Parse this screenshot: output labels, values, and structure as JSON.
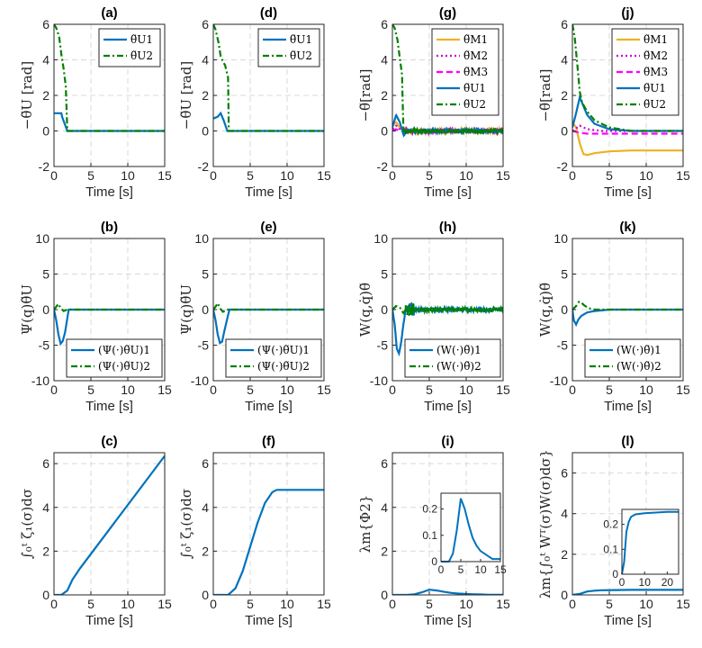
{
  "colors": {
    "c1": "#0072BD",
    "c2": "#008000",
    "m1": "#EDB120",
    "m2": "#CC00CC",
    "m3": "#FF00FF",
    "axis": "#262626",
    "grid": "#d9d9d9"
  },
  "chart_data": [
    {
      "id": "a",
      "type": "line",
      "title": "(a)",
      "xlabel": "Time [s]",
      "ylabel": "−θ̃U [rad]",
      "xlim": [
        0,
        15
      ],
      "ylim": [
        -2,
        6
      ],
      "xticks": [
        0,
        5,
        10,
        15
      ],
      "yticks": [
        -2,
        0,
        2,
        4,
        6
      ],
      "grid": true,
      "legend": "top-right",
      "series": [
        {
          "name": "θ̃U1",
          "color": "#0072BD",
          "dash": "solid",
          "x": [
            0,
            0.5,
            1.0,
            1.1,
            1.8,
            15
          ],
          "y": [
            1,
            1,
            1,
            0.8,
            0,
            0
          ]
        },
        {
          "name": "θ̃U2",
          "color": "#008000",
          "dash": "dashdot",
          "x": [
            0,
            0.3,
            0.7,
            1.0,
            1.3,
            1.6,
            1.8,
            15
          ],
          "y": [
            6,
            5.8,
            5.3,
            4.3,
            3.5,
            2.5,
            0,
            0
          ]
        }
      ]
    },
    {
      "id": "d",
      "type": "line",
      "title": "(d)",
      "xlabel": "Time [s]",
      "ylabel": "−θ̃U [rad]",
      "xlim": [
        0,
        15
      ],
      "ylim": [
        -2,
        6
      ],
      "xticks": [
        0,
        5,
        10,
        15
      ],
      "yticks": [
        -2,
        0,
        2,
        4,
        6
      ],
      "grid": true,
      "legend": "top-right",
      "series": [
        {
          "name": "θ̃U1",
          "color": "#0072BD",
          "dash": "solid",
          "x": [
            0,
            0.6,
            1.0,
            1.4,
            1.9,
            15
          ],
          "y": [
            0.7,
            0.8,
            1.0,
            0.6,
            0,
            0
          ]
        },
        {
          "name": "θ̃U2",
          "color": "#008000",
          "dash": "dashdot",
          "x": [
            0,
            0.3,
            0.7,
            1.0,
            1.3,
            1.6,
            2.0,
            2.1,
            15
          ],
          "y": [
            6,
            5.7,
            5.0,
            4.2,
            3.9,
            3.7,
            3.0,
            0,
            0
          ]
        }
      ]
    },
    {
      "id": "g",
      "type": "line",
      "title": "(g)",
      "xlabel": "Time [s]",
      "ylabel": "−θ̃[rad]",
      "xlim": [
        0,
        15
      ],
      "ylim": [
        -2,
        6
      ],
      "xticks": [
        0,
        5,
        10,
        15
      ],
      "yticks": [
        -2,
        0,
        2,
        4,
        6
      ],
      "grid": true,
      "legend": "top-right",
      "noisy_after": 1.5,
      "series": [
        {
          "name": "θ̃M1",
          "color": "#EDB120",
          "dash": "solid",
          "x": [
            0,
            0.5,
            1.0,
            1.5,
            15
          ],
          "y": [
            0.3,
            0.5,
            0.2,
            0,
            0
          ]
        },
        {
          "name": "θ̃M2",
          "color": "#CC00CC",
          "dash": "dot",
          "x": [
            0,
            0.5,
            1.0,
            1.5,
            15
          ],
          "y": [
            0.1,
            0.3,
            0.1,
            0,
            0
          ]
        },
        {
          "name": "θ̃M3",
          "color": "#FF00FF",
          "dash": "dash",
          "x": [
            0,
            0.5,
            1.0,
            1.5,
            15
          ],
          "y": [
            0,
            0.1,
            0,
            0,
            0
          ]
        },
        {
          "name": "θ̃U1",
          "color": "#0072BD",
          "dash": "solid",
          "x": [
            0,
            0.5,
            1.0,
            1.5,
            2.0,
            15
          ],
          "y": [
            0.2,
            0.9,
            0.5,
            -0.2,
            0,
            0
          ]
        },
        {
          "name": "θ̃U2",
          "color": "#008000",
          "dash": "dashdot",
          "x": [
            0,
            0.3,
            0.7,
            1.0,
            1.3,
            1.5,
            15
          ],
          "y": [
            6,
            5.8,
            5.1,
            4.1,
            3.2,
            0,
            0
          ]
        }
      ]
    },
    {
      "id": "j",
      "type": "line",
      "title": "(j)",
      "xlabel": "Time [s]",
      "ylabel": "−θ̃[rad]",
      "xlim": [
        0,
        15
      ],
      "ylim": [
        -2,
        6
      ],
      "xticks": [
        0,
        5,
        10,
        15
      ],
      "yticks": [
        -2,
        0,
        2,
        4,
        6
      ],
      "grid": true,
      "legend": "top-right",
      "series": [
        {
          "name": "θ̃M1",
          "color": "#EDB120",
          "dash": "solid",
          "x": [
            0,
            0.5,
            1.0,
            1.5,
            2,
            3,
            5,
            8,
            15
          ],
          "y": [
            0.5,
            0.2,
            -0.7,
            -1.3,
            -1.35,
            -1.25,
            -1.15,
            -1.1,
            -1.1
          ]
        },
        {
          "name": "θ̃M2",
          "color": "#CC00CC",
          "dash": "dot",
          "x": [
            0,
            1,
            2,
            4,
            15
          ],
          "y": [
            0,
            0.3,
            0.1,
            0,
            0
          ]
        },
        {
          "name": "θ̃M3",
          "color": "#FF00FF",
          "dash": "dash",
          "x": [
            0,
            1,
            2,
            4,
            15
          ],
          "y": [
            0,
            -0.1,
            -0.15,
            -0.15,
            -0.15
          ]
        },
        {
          "name": "θ̃U1",
          "color": "#0072BD",
          "dash": "solid",
          "x": [
            0,
            0.5,
            1.0,
            1.5,
            2,
            3,
            5,
            8,
            15
          ],
          "y": [
            0.2,
            1.0,
            1.9,
            1.4,
            0.9,
            0.4,
            0.1,
            0,
            0
          ]
        },
        {
          "name": "θ̃U2",
          "color": "#008000",
          "dash": "dashdot",
          "x": [
            0,
            0.3,
            0.7,
            1.0,
            1.3,
            2,
            3,
            5,
            8,
            15
          ],
          "y": [
            6,
            5.3,
            3.6,
            2.2,
            1.6,
            1.1,
            0.6,
            0.2,
            0,
            0
          ]
        }
      ]
    },
    {
      "id": "b",
      "type": "line",
      "title": "(b)",
      "xlabel": "Time [s]",
      "ylabel": "Ψ(q)θ̃U",
      "xlim": [
        0,
        15
      ],
      "ylim": [
        -10,
        10
      ],
      "xticks": [
        0,
        5,
        10,
        15
      ],
      "yticks": [
        -10,
        -5,
        0,
        5,
        10
      ],
      "grid": true,
      "legend": "bottom-right",
      "series": [
        {
          "name": "(Ψ(·)θ̃U)1",
          "color": "#0072BD",
          "dash": "solid",
          "x": [
            0,
            0.3,
            0.6,
            0.9,
            1.2,
            1.5,
            1.8,
            2.0,
            15
          ],
          "y": [
            0,
            -1.5,
            -3.5,
            -4.8,
            -4.4,
            -3.2,
            -1.2,
            0,
            0
          ]
        },
        {
          "name": "(Ψ(·)θ̃U)2",
          "color": "#008000",
          "dash": "dashdot",
          "x": [
            0,
            0.3,
            0.6,
            0.9,
            1.3,
            1.8,
            15
          ],
          "y": [
            0,
            0.4,
            0.8,
            0.2,
            -0.2,
            0,
            0
          ]
        }
      ]
    },
    {
      "id": "e",
      "type": "line",
      "title": "(e)",
      "xlabel": "Time [s]",
      "ylabel": "Ψ(q)θ̃U",
      "xlim": [
        0,
        15
      ],
      "ylim": [
        -10,
        10
      ],
      "xticks": [
        0,
        5,
        10,
        15
      ],
      "yticks": [
        -10,
        -5,
        0,
        5,
        10
      ],
      "grid": true,
      "legend": "bottom-right",
      "series": [
        {
          "name": "(Ψ(·)θ̃U)1",
          "color": "#0072BD",
          "dash": "solid",
          "x": [
            0,
            0.3,
            0.6,
            0.9,
            1.2,
            1.5,
            2.0,
            2.2,
            15
          ],
          "y": [
            0,
            -1.5,
            -3.5,
            -4.7,
            -4.5,
            -3.0,
            -0.8,
            0,
            0
          ]
        },
        {
          "name": "(Ψ(·)θ̃U)2",
          "color": "#008000",
          "dash": "dashdot",
          "x": [
            0,
            0.3,
            0.6,
            0.9,
            1.3,
            2.0,
            15
          ],
          "y": [
            0,
            0.4,
            0.9,
            0.2,
            -0.3,
            0,
            0
          ]
        }
      ]
    },
    {
      "id": "h",
      "type": "line",
      "title": "(h)",
      "xlabel": "Time [s]",
      "ylabel": "W(q,q̇)θ̃",
      "xlim": [
        0,
        15
      ],
      "ylim": [
        -10,
        10
      ],
      "xticks": [
        0,
        5,
        10,
        15
      ],
      "yticks": [
        -10,
        -5,
        0,
        5,
        10
      ],
      "grid": true,
      "legend": "bottom-right",
      "noisy_after": 1.8,
      "series": [
        {
          "name": "(W(·)θ̃)1",
          "color": "#0072BD",
          "dash": "solid",
          "x": [
            0,
            0.3,
            0.6,
            0.9,
            1.2,
            1.5,
            1.8,
            15
          ],
          "y": [
            0,
            -2,
            -5.5,
            -6.2,
            -4.5,
            -2,
            0,
            0
          ]
        },
        {
          "name": "(W(·)θ̃)2",
          "color": "#008000",
          "dash": "dashdot",
          "x": [
            0,
            0.5,
            1.0,
            1.5,
            1.8,
            15
          ],
          "y": [
            0,
            0.5,
            0.3,
            -0.5,
            0,
            0
          ]
        }
      ]
    },
    {
      "id": "k",
      "type": "line",
      "title": "(k)",
      "xlabel": "Time [s]",
      "ylabel": "W(q,q̇)θ̃",
      "xlim": [
        0,
        15
      ],
      "ylim": [
        -10,
        10
      ],
      "xticks": [
        0,
        5,
        10,
        15
      ],
      "yticks": [
        -10,
        -5,
        0,
        5,
        10
      ],
      "grid": true,
      "legend": "bottom-right",
      "series": [
        {
          "name": "(W(·)θ̃)1",
          "color": "#0072BD",
          "dash": "solid",
          "x": [
            0,
            0.2,
            0.5,
            0.8,
            1.2,
            2,
            3,
            5,
            15
          ],
          "y": [
            0,
            -1.5,
            -2.1,
            -1.4,
            -0.9,
            -0.4,
            -0.2,
            0,
            0
          ]
        },
        {
          "name": "(W(·)θ̃)2",
          "color": "#008000",
          "dash": "dashdot",
          "x": [
            0,
            0.5,
            0.9,
            1.2,
            1.6,
            2.2,
            3,
            4,
            15
          ],
          "y": [
            0,
            0.5,
            1.1,
            1.0,
            0.6,
            0.2,
            0,
            0,
            0
          ]
        }
      ]
    },
    {
      "id": "c",
      "type": "line",
      "title": "(c)",
      "xlabel": "Time [s]",
      "ylabel": "∫₀ᵗ ζ₁(σ)dσ",
      "xlim": [
        0,
        15
      ],
      "ylim": [
        0,
        6.5
      ],
      "xticks": [
        0,
        5,
        10,
        15
      ],
      "yticks": [
        0,
        2,
        4,
        6
      ],
      "grid": true,
      "series": [
        {
          "name": "",
          "color": "#0072BD",
          "dash": "solid",
          "x": [
            0,
            1.0,
            1.8,
            2.5,
            3.5,
            15
          ],
          "y": [
            0,
            0,
            0.2,
            0.7,
            1.2,
            6.35
          ]
        }
      ]
    },
    {
      "id": "f",
      "type": "line",
      "title": "(f)",
      "xlabel": "Time [s]",
      "ylabel": "∫₀ᵗ ζ₁(σ)dσ",
      "xlim": [
        0,
        15
      ],
      "ylim": [
        0,
        6.5
      ],
      "xticks": [
        0,
        5,
        10,
        15
      ],
      "yticks": [
        0,
        2,
        4,
        6
      ],
      "grid": true,
      "series": [
        {
          "name": "",
          "color": "#0072BD",
          "dash": "solid",
          "x": [
            0,
            2.0,
            3.0,
            4.0,
            5.0,
            6.0,
            7.0,
            8.0,
            8.6,
            9.0,
            15
          ],
          "y": [
            0,
            0,
            0.3,
            1.1,
            2.2,
            3.3,
            4.2,
            4.7,
            4.8,
            4.8,
            4.8
          ]
        }
      ]
    },
    {
      "id": "i",
      "type": "line",
      "title": "(i)",
      "xlabel": "Time [s]",
      "ylabel": "λm{Φ2}",
      "xlim": [
        0,
        15
      ],
      "ylim": [
        0,
        6.5
      ],
      "xticks": [
        0,
        5,
        10,
        15
      ],
      "yticks": [
        0,
        2,
        4,
        6
      ],
      "grid": true,
      "series": [
        {
          "name": "",
          "color": "#0072BD",
          "dash": "solid",
          "x": [
            0,
            2,
            3,
            4,
            5,
            6,
            7,
            8,
            9,
            10,
            11,
            12,
            13,
            15
          ],
          "y": [
            0,
            0,
            0.03,
            0.12,
            0.24,
            0.2,
            0.14,
            0.09,
            0.06,
            0.04,
            0.03,
            0.02,
            0.01,
            0.01
          ]
        }
      ],
      "inset": {
        "xlim": [
          0,
          15
        ],
        "ylim": [
          0,
          0.26
        ],
        "xticks": [
          0,
          5,
          10,
          15
        ],
        "yticks": [
          0,
          0.1,
          0.2
        ]
      }
    },
    {
      "id": "l",
      "type": "line",
      "title": "(l)",
      "xlabel": "Time [s]",
      "ylabel": "λm{∫₀ᵗ Wᵀ(σ)W(σ)dσ}",
      "xlim": [
        0,
        15
      ],
      "ylim": [
        0,
        7
      ],
      "xticks": [
        0,
        5,
        10,
        15
      ],
      "yticks": [
        0,
        2,
        4,
        6
      ],
      "grid": true,
      "series": [
        {
          "name": "",
          "color": "#0072BD",
          "dash": "solid",
          "x": [
            0,
            1,
            2,
            3,
            4,
            6,
            8,
            15
          ],
          "y": [
            0,
            0.05,
            0.17,
            0.21,
            0.23,
            0.24,
            0.25,
            0.25
          ]
        }
      ],
      "inset": {
        "xlim": [
          0,
          25
        ],
        "ylim": [
          0,
          0.26
        ],
        "xticks": [
          0,
          10,
          20
        ],
        "yticks": [
          0,
          0.1,
          0.2
        ]
      }
    }
  ]
}
